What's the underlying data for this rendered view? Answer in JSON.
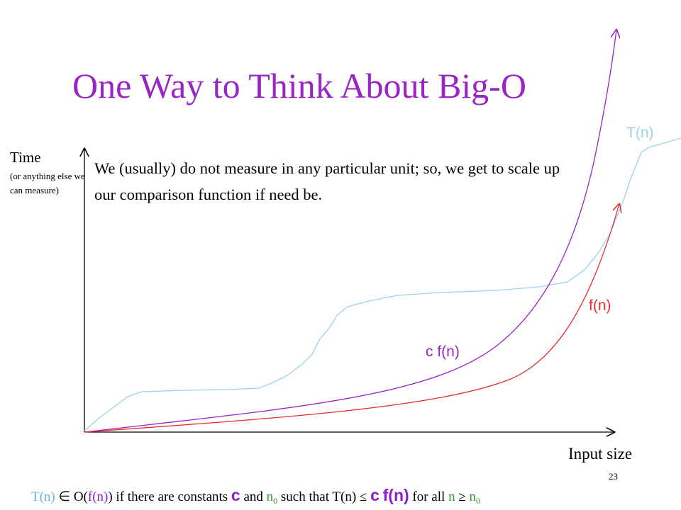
{
  "title": "One Way to Think About Big-O",
  "y_axis": {
    "label": "Time",
    "sublabel": "(or anything else we can measure)"
  },
  "x_axis": {
    "label": "Input size"
  },
  "note": "We (usually) do not measure in any particular unit; so, we get to scale up our comparison function if need be.",
  "curves": {
    "tn": {
      "label": "T(n)",
      "color": "#9fd0ea"
    },
    "cfn": {
      "label": "c f(n)",
      "color": "#9a24c6"
    },
    "fn": {
      "label": "f(n)",
      "color": "#e03030"
    }
  },
  "page_number": "23",
  "formula": {
    "p1": "T(n)",
    "p2": " ∈ O(",
    "p3": "f(n)",
    "p4": ") if there are constants ",
    "p5": "c",
    "p6": " and ",
    "p7": "n",
    "p7_sub": "0",
    "p8": " such that T(n) ≤ ",
    "p9": "c",
    "p10": " ",
    "p11": "f(n)",
    "p12": " for all ",
    "p13": "n",
    "p14": " ≥ ",
    "p15": "n",
    "p15_sub": "0"
  }
}
